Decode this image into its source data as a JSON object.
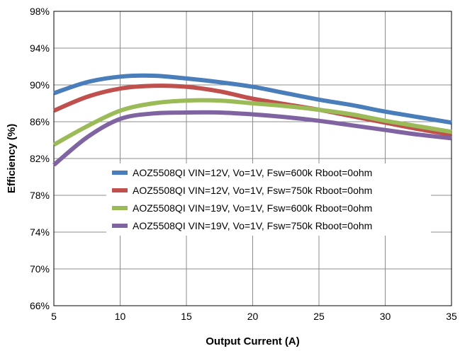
{
  "chart_data": {
    "type": "line",
    "title": "",
    "xlabel": "Output Current (A)",
    "ylabel": "Efficiency (%)",
    "xlim": [
      5,
      35
    ],
    "ylim": [
      66,
      98
    ],
    "x_ticks": [
      5,
      10,
      15,
      20,
      25,
      30,
      35
    ],
    "y_ticks": [
      66,
      70,
      74,
      78,
      82,
      86,
      90,
      94,
      98
    ],
    "y_tick_labels": [
      "66%",
      "70%",
      "74%",
      "78%",
      "82%",
      "86%",
      "90%",
      "94%",
      "98%"
    ],
    "x_tick_labels": [
      "5",
      "10",
      "15",
      "20",
      "25",
      "30",
      "35"
    ],
    "grid": true,
    "legend_position": "lower-center",
    "x": [
      5,
      7.5,
      10,
      12.5,
      15,
      17.5,
      20,
      22.5,
      25,
      27.5,
      30,
      32.5,
      35
    ],
    "series": [
      {
        "name": "AOZ5508QI VIN=12V, Vo=1V, Fsw=600k Rboot=0ohm",
        "color": "#4a7ebb",
        "values": [
          89.1,
          90.3,
          90.9,
          91.0,
          90.7,
          90.3,
          89.8,
          89.1,
          88.4,
          87.8,
          87.1,
          86.5,
          85.9
        ]
      },
      {
        "name": "AOZ5508QI VIN=12V, Vo=1V, Fsw=750k Rboot=0ohm",
        "color": "#c0504d",
        "values": [
          87.2,
          88.7,
          89.6,
          89.9,
          89.8,
          89.3,
          88.5,
          87.9,
          87.3,
          86.6,
          85.9,
          85.2,
          84.6
        ]
      },
      {
        "name": "AOZ5508QI VIN=19V, Vo=1V, Fsw=600k Rboot=0ohm",
        "color": "#9bbb59",
        "values": [
          83.5,
          85.5,
          87.2,
          88.0,
          88.3,
          88.3,
          88.0,
          87.7,
          87.3,
          86.8,
          86.1,
          85.5,
          84.9
        ]
      },
      {
        "name": "AOZ5508QI VIN=19V, Vo=1V, Fsw=750k Rboot=0ohm",
        "color": "#8064a2",
        "values": [
          81.3,
          84.3,
          86.3,
          86.9,
          87.0,
          87.0,
          86.8,
          86.5,
          86.1,
          85.6,
          85.1,
          84.6,
          84.2
        ]
      }
    ]
  }
}
